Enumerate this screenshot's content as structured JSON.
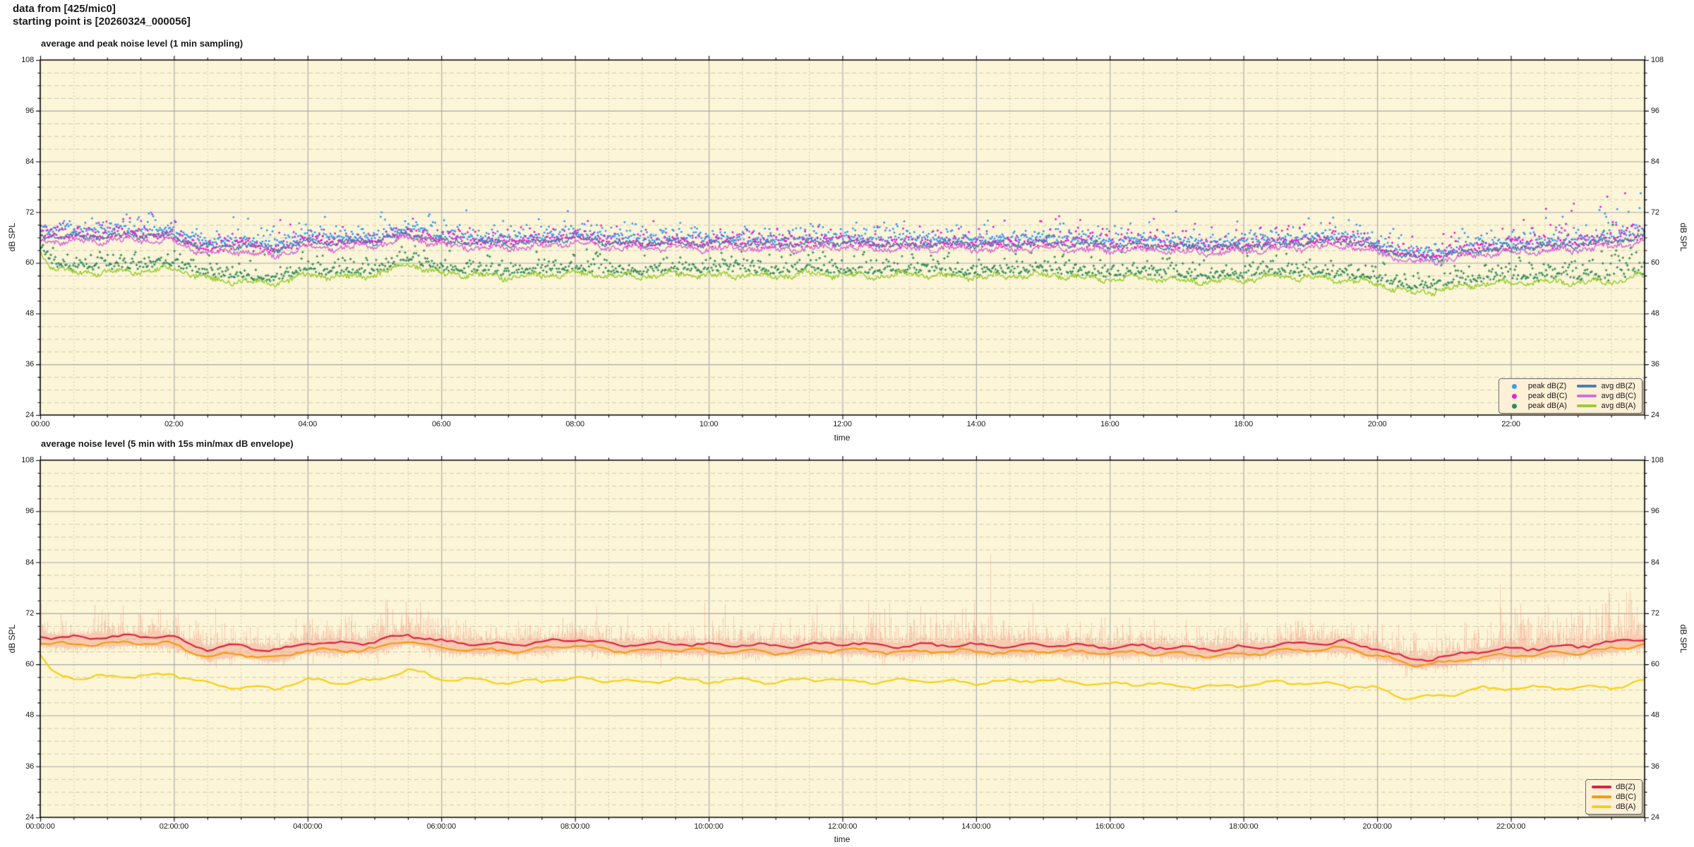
{
  "header": {
    "line1": "data from [425/mic0]",
    "line2": "starting point is [20260324_000056]"
  },
  "colors": {
    "page_bg": "#ffffff",
    "plot_bg": "#fcf5d8",
    "grid_major": "#a9a9a9",
    "grid_minor": "#b5ae92",
    "axis": "#000000",
    "text": "#1a1a1a",
    "peak_dbz": "#3d9cf0",
    "peak_dbc": "#ee1fcb",
    "peak_dba": "#2e8b57",
    "avg_dbz": "#4682b4",
    "avg_dbc": "#d36fd3",
    "avg_dba": "#9acd32",
    "dbz": "#dc2344",
    "dbc": "#f89a0e",
    "dba": "#f3d113",
    "envelope": "#f0917a",
    "legend_bg": "#fdf0d6",
    "legend_border": "#6b6b6b"
  },
  "chart_data": [
    {
      "type": "line+scatter",
      "title": "average and peak noise level (1 min sampling)",
      "xlabel": "time",
      "ylabel": "dB SPL",
      "ylabel_right": "dB SPL",
      "xlim_hours": [
        0,
        24
      ],
      "ylim": [
        24,
        108
      ],
      "y_ticks": [
        24,
        36,
        48,
        60,
        72,
        84,
        96,
        108
      ],
      "y_minor_step_db": 3,
      "x_minor_step_hours": 0.5,
      "grid": true,
      "legend_position": "lower right",
      "legend": [
        {
          "label": "peak dB(Z)",
          "marker": "dot",
          "color": "#3d9cf0"
        },
        {
          "label": "peak dB(C)",
          "marker": "dot",
          "color": "#ee1fcb"
        },
        {
          "label": "peak dB(A)",
          "marker": "dot",
          "color": "#2e8b57"
        },
        {
          "label": "avg dB(Z)",
          "marker": "line",
          "color": "#4682b4"
        },
        {
          "label": "avg dB(C)",
          "marker": "line",
          "color": "#d36fd3"
        },
        {
          "label": "avg dB(A)",
          "marker": "line",
          "color": "#9acd32"
        }
      ],
      "x_ticks": {
        "hours": [
          0,
          2,
          4,
          6,
          8,
          10,
          12,
          14,
          16,
          18,
          20,
          22
        ],
        "labels": [
          "00:00",
          "02:00",
          "04:00",
          "06:00",
          "08:00",
          "10:00",
          "12:00",
          "14:00",
          "16:00",
          "18:00",
          "20:00",
          "22:00"
        ]
      },
      "points_per_series": 1440,
      "sample_hours": [
        0,
        0.15,
        0.5,
        1,
        1.5,
        2,
        2.5,
        3,
        3.5,
        4,
        4.5,
        5,
        5.5,
        6,
        6.5,
        7,
        7.5,
        8,
        8.5,
        9,
        9.5,
        10,
        10.5,
        11,
        11.5,
        12,
        12.5,
        13,
        13.5,
        14,
        14.5,
        15,
        15.5,
        16,
        16.5,
        17,
        17.5,
        18,
        18.5,
        19,
        19.5,
        20,
        20.5,
        21,
        21.5,
        22,
        22.5,
        23,
        23.5,
        24
      ],
      "series": [
        {
          "name": "avg dB(Z)",
          "color": "#4682b4",
          "db": [
            66.6,
            66.4,
            66.2,
            66.4,
            66.6,
            66.2,
            63.6,
            64.3,
            63.2,
            65.0,
            64.8,
            65.2,
            67.0,
            65.3,
            64.8,
            64.7,
            65.1,
            66.0,
            64.9,
            64.6,
            64.9,
            64.5,
            64.7,
            64.3,
            64.6,
            64.9,
            64.5,
            64.3,
            64.7,
            64.5,
            64.3,
            64.7,
            64.4,
            64.1,
            64.3,
            63.9,
            63.6,
            63.9,
            64.5,
            64.9,
            65.3,
            63.6,
            61.2,
            61.6,
            63.1,
            63.6,
            63.9,
            64.3,
            65.1,
            66.2
          ]
        },
        {
          "name": "avg dB(C)",
          "color": "#d36fd3",
          "db": [
            65.5,
            65.2,
            65.0,
            65.2,
            65.5,
            65.0,
            62.0,
            62.9,
            61.6,
            63.8,
            63.6,
            64.0,
            66.0,
            64.1,
            63.6,
            63.5,
            63.9,
            64.9,
            63.7,
            63.4,
            63.7,
            63.3,
            63.5,
            63.1,
            63.4,
            63.7,
            63.3,
            63.1,
            63.5,
            63.3,
            63.1,
            63.5,
            63.2,
            62.9,
            63.1,
            62.7,
            62.4,
            62.7,
            63.3,
            63.7,
            64.1,
            62.4,
            60.2,
            60.6,
            62.0,
            62.4,
            62.7,
            63.1,
            63.9,
            65.0
          ]
        },
        {
          "name": "avg dB(A)",
          "color": "#9acd32",
          "db": [
            63.0,
            59.2,
            57.6,
            57.9,
            58.1,
            58.6,
            56.2,
            55.6,
            55.2,
            57.2,
            56.6,
            57.0,
            59.8,
            57.4,
            57.2,
            56.6,
            57.0,
            57.6,
            57.0,
            56.8,
            57.4,
            56.9,
            57.2,
            56.7,
            57.6,
            57.0,
            56.8,
            57.3,
            56.9,
            56.6,
            56.9,
            57.2,
            56.6,
            56.2,
            56.5,
            55.9,
            55.6,
            55.9,
            56.8,
            56.4,
            56.0,
            55.2,
            52.9,
            53.6,
            55.1,
            55.3,
            55.4,
            55.5,
            55.4,
            57.0
          ]
        }
      ],
      "peak_series": [
        {
          "name": "peak dB(Z)",
          "color": "#3d9cf0",
          "marker": "dot",
          "base_series": 0,
          "offset_db": 0.7,
          "tail_db": 1.15
        },
        {
          "name": "peak dB(C)",
          "color": "#ee1fcb",
          "marker": "dot",
          "base_series": 1,
          "offset_db": 0.7,
          "tail_db": 1.15
        },
        {
          "name": "peak dB(A)",
          "color": "#2e8b57",
          "marker": "plus",
          "base_series": 2,
          "offset_db": 0.7,
          "tail_db": 1.3
        }
      ]
    },
    {
      "type": "line+envelope",
      "title": "average noise level (5 min with 15s min/max dB envelope)",
      "xlabel": "time",
      "ylabel": "dB SPL",
      "ylabel_right": "dB SPL",
      "xlim_hours": [
        0,
        24
      ],
      "ylim": [
        24,
        108
      ],
      "y_ticks": [
        24,
        36,
        48,
        60,
        72,
        84,
        96,
        108
      ],
      "y_minor_step_db": 3,
      "x_minor_step_hours": 0.5,
      "grid": true,
      "legend_position": "lower right",
      "legend": [
        {
          "label": "dB(Z)",
          "marker": "line",
          "color": "#dc2344"
        },
        {
          "label": "dB(C)",
          "marker": "line",
          "color": "#f89a0e"
        },
        {
          "label": "dB(A)",
          "marker": "line",
          "color": "#f3d113"
        }
      ],
      "x_ticks": {
        "hours": [
          0,
          2,
          4,
          6,
          8,
          10,
          12,
          14,
          16,
          18,
          20,
          22
        ],
        "labels": [
          "00:00:00",
          "02:00:00",
          "04:00:00",
          "06:00:00",
          "08:00:00",
          "10:00:00",
          "12:00:00",
          "14:00:00",
          "16:00:00",
          "18:00:00",
          "20:00:00",
          "22:00:00"
        ]
      },
      "points_per_series": 288,
      "sample_hours": [
        0,
        0.15,
        0.5,
        1,
        1.5,
        2,
        2.5,
        3,
        3.5,
        4,
        4.5,
        5,
        5.5,
        6,
        6.5,
        7,
        7.5,
        8,
        8.5,
        9,
        9.5,
        10,
        10.5,
        11,
        11.5,
        12,
        12.5,
        13,
        13.5,
        14,
        14.5,
        15,
        15.5,
        16,
        16.5,
        17,
        17.5,
        18,
        18.5,
        19,
        19.5,
        20,
        20.5,
        21,
        21.5,
        22,
        22.5,
        23,
        23.5,
        24
      ],
      "series": [
        {
          "name": "dB(Z)",
          "color": "#dc2344",
          "db": [
            66.6,
            66.4,
            66.2,
            66.4,
            66.6,
            66.2,
            63.6,
            64.3,
            63.2,
            65.0,
            64.8,
            65.2,
            67.0,
            65.3,
            64.8,
            64.7,
            65.1,
            66.0,
            64.9,
            64.6,
            64.9,
            64.5,
            64.7,
            64.3,
            64.6,
            64.9,
            64.5,
            64.3,
            64.7,
            64.5,
            64.3,
            64.7,
            64.4,
            64.1,
            64.3,
            63.9,
            63.6,
            63.9,
            64.5,
            64.9,
            65.3,
            63.6,
            61.2,
            61.6,
            63.1,
            63.6,
            63.9,
            64.3,
            65.1,
            66.2
          ]
        },
        {
          "name": "dB(C)",
          "color": "#f89a0e",
          "db": [
            65.2,
            64.9,
            64.7,
            64.9,
            65.2,
            64.7,
            61.7,
            62.6,
            61.3,
            63.5,
            63.3,
            63.7,
            65.7,
            63.8,
            63.3,
            63.2,
            63.6,
            64.6,
            63.4,
            63.1,
            63.4,
            63.0,
            63.2,
            62.8,
            63.1,
            63.4,
            63.0,
            62.8,
            63.2,
            63.0,
            62.8,
            63.2,
            62.9,
            62.6,
            62.8,
            62.4,
            62.1,
            62.4,
            63.0,
            63.4,
            63.8,
            62.1,
            59.9,
            60.3,
            61.7,
            62.1,
            62.4,
            62.8,
            63.6,
            64.7
          ]
        },
        {
          "name": "dB(A)",
          "color": "#f3d113",
          "db": [
            62.1,
            58.3,
            56.7,
            57.0,
            57.2,
            57.7,
            55.3,
            54.7,
            54.3,
            56.3,
            55.7,
            56.1,
            58.9,
            56.5,
            56.3,
            55.7,
            56.1,
            56.7,
            56.1,
            55.9,
            56.5,
            56.0,
            56.3,
            55.8,
            56.7,
            56.1,
            55.9,
            56.4,
            56.0,
            55.7,
            56.0,
            56.3,
            55.7,
            55.3,
            55.6,
            55.0,
            54.7,
            55.0,
            55.9,
            55.5,
            55.1,
            54.3,
            52.0,
            52.7,
            54.2,
            54.4,
            54.5,
            54.6,
            54.5,
            56.1
          ]
        }
      ],
      "envelope": {
        "applies_to": [
          "dB(Z)",
          "dB(C)"
        ],
        "interval_seconds": 15,
        "color": "#f0917a",
        "alpha": 0.42,
        "intensity_hours": [
          0,
          1,
          2,
          3,
          4,
          5,
          5.5,
          6,
          7,
          8,
          9,
          10,
          11,
          12,
          13,
          13.5,
          14,
          14.5,
          15,
          16,
          17,
          18,
          19,
          20,
          21,
          21.5,
          22,
          23,
          23.5,
          24
        ],
        "intensity_db": [
          3.2,
          3.0,
          3.4,
          3.2,
          3.6,
          4.4,
          4.8,
          3.0,
          2.8,
          3.0,
          2.8,
          2.8,
          3.0,
          3.2,
          4.6,
          5.4,
          5.8,
          4.4,
          3.4,
          3.0,
          2.8,
          3.2,
          3.0,
          3.2,
          3.6,
          4.6,
          5.6,
          6.0,
          6.2,
          6.4
        ]
      }
    }
  ]
}
